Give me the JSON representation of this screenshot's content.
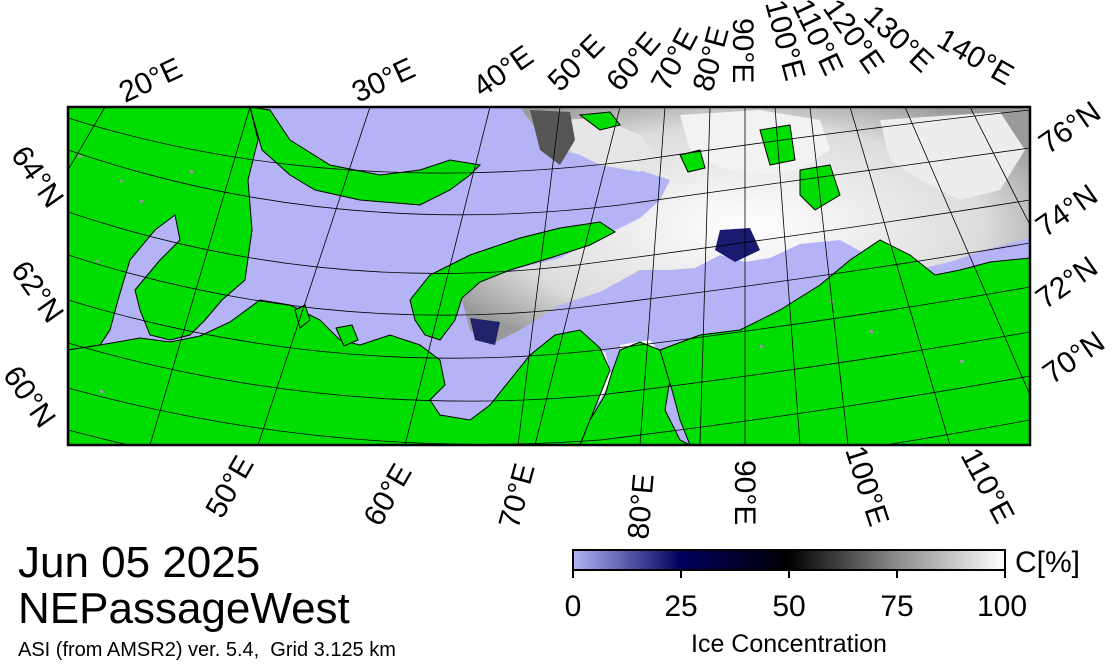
{
  "header": {
    "date": "Jun 05 2025",
    "region": "NEPassageWest",
    "product": "ASI (from AMSR2) ver. 5.4,  Grid 3.125 km"
  },
  "colorbar": {
    "unit": "C[%]",
    "ticks": [
      "0",
      "25",
      "50",
      "75",
      "100"
    ],
    "title": "Ice Concentration",
    "colors": [
      "#b3b3f5",
      "#00005c",
      "#000000",
      "#8c8c8c",
      "#ffffff"
    ]
  },
  "map": {
    "colors": {
      "ocean": "#b3b3f5",
      "land": "#00dd00",
      "ice": "#ffffff",
      "grid": "#000000",
      "frame": "#000000",
      "landmask_gray": "#999999"
    },
    "top_longitude_labels": [
      "20°E",
      "30°E",
      "40°E",
      "50°E",
      "60°E",
      "70°E",
      "80°E",
      "90°E",
      "100°E",
      "110°E",
      "120°E",
      "130°E",
      "140°E"
    ],
    "bottom_longitude_labels": [
      "50°E",
      "60°E",
      "70°E",
      "80°E",
      "90°E",
      "100°E",
      "110°E"
    ],
    "left_latitude_labels": [
      "64°N",
      "62°N",
      "60°N"
    ],
    "right_latitude_labels": [
      "76°N",
      "74°N",
      "72°N",
      "70°N"
    ]
  }
}
